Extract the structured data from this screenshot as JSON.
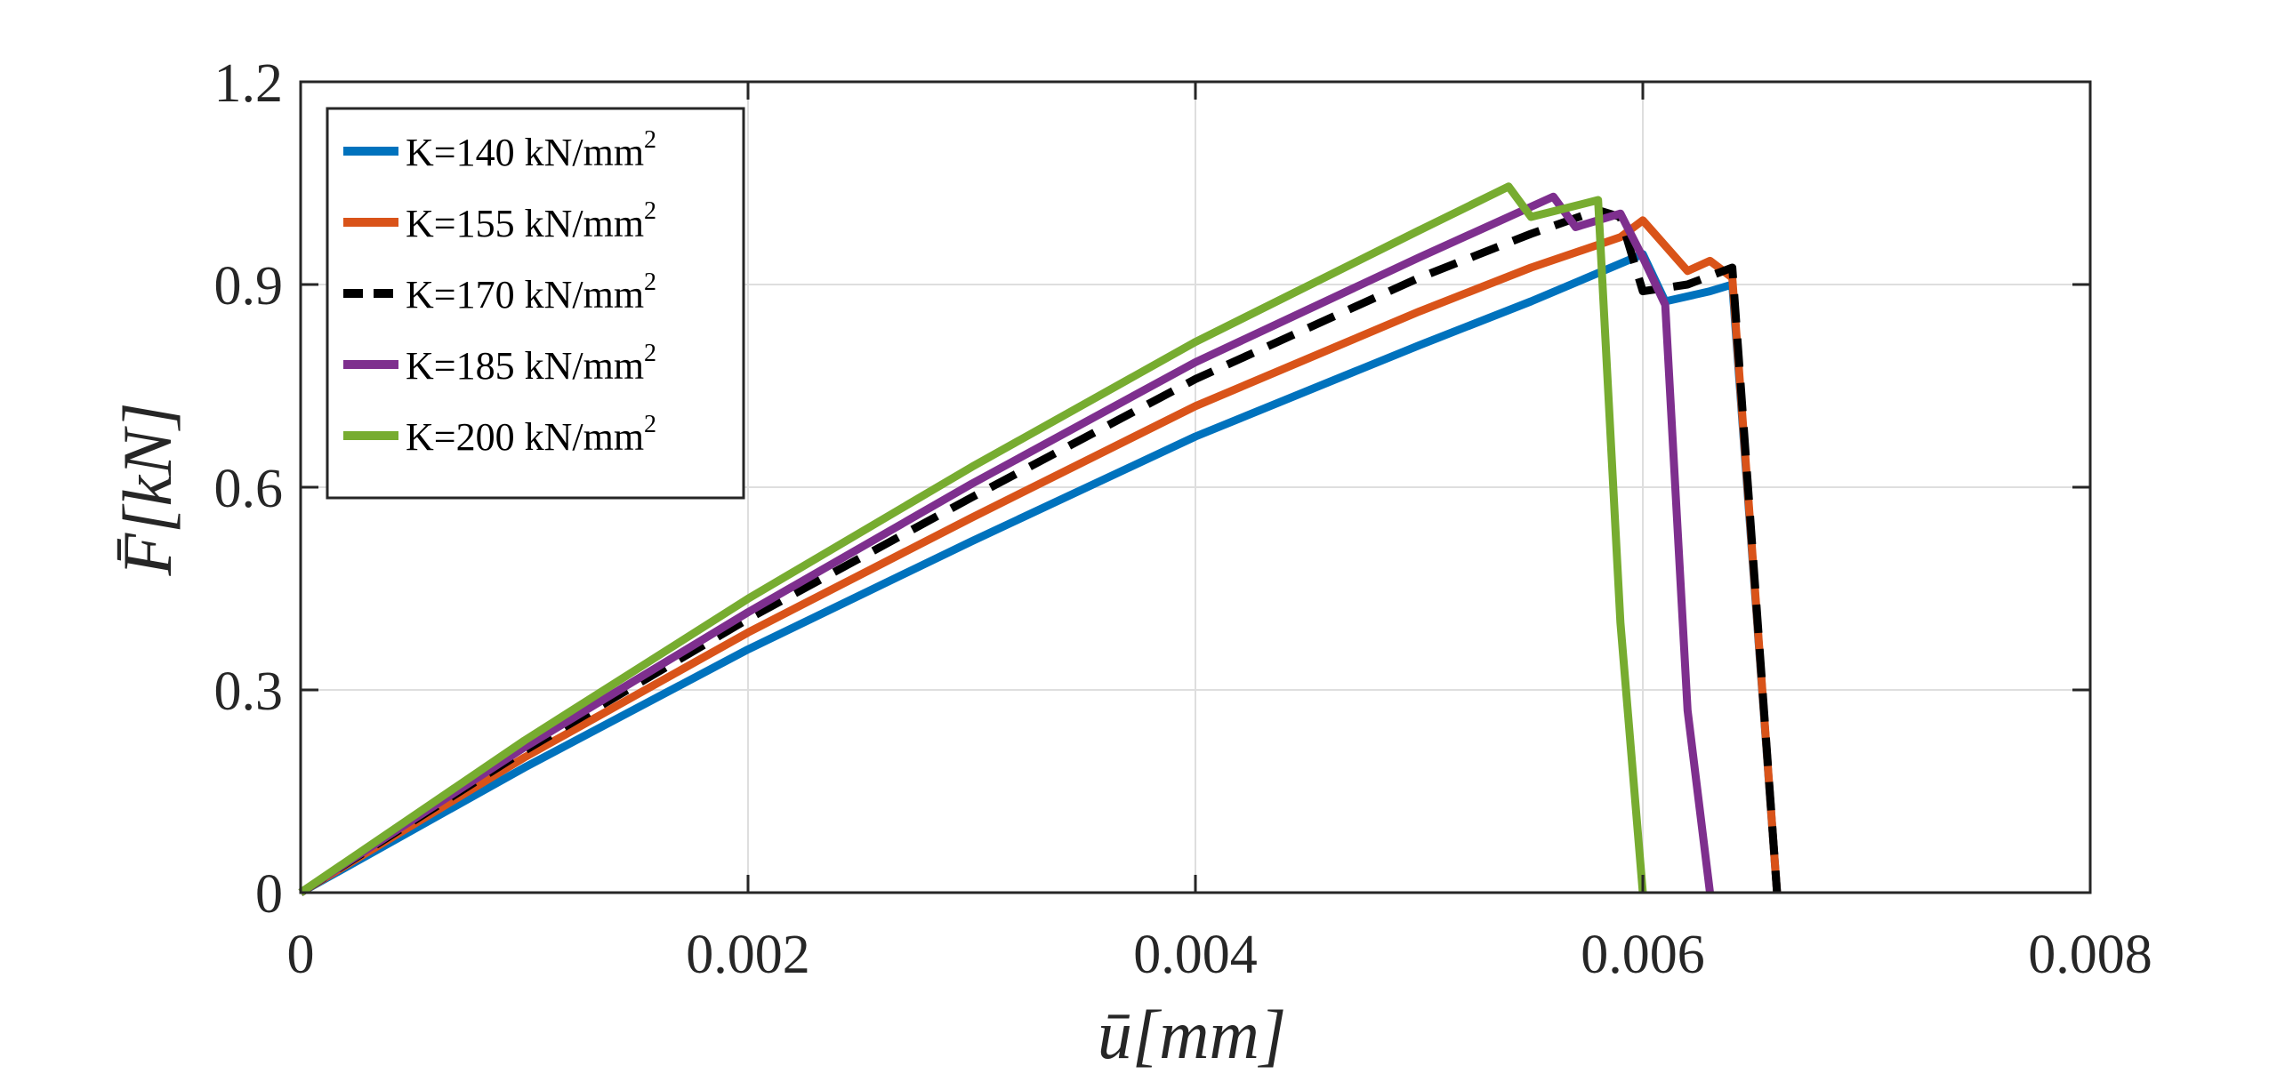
{
  "chart_data": {
    "type": "line",
    "xlabel": "ū[mm]",
    "ylabel": "F̄[kN]",
    "xlim": [
      0,
      0.008
    ],
    "ylim": [
      0,
      1.2
    ],
    "xticks": [
      0,
      0.002,
      0.004,
      0.006,
      0.008
    ],
    "xtick_labels": [
      "0",
      "0.002",
      "0.004",
      "0.006",
      "0.008"
    ],
    "yticks": [
      0,
      0.3,
      0.6,
      0.9,
      1.2
    ],
    "ytick_labels": [
      "0",
      "0.3",
      "0.6",
      "0.9",
      "1.2"
    ],
    "grid": true,
    "legend_position": "top-left",
    "series": [
      {
        "name": "K=140 kN/mm",
        "superscript": "2",
        "color": "#0072BD",
        "dash": "solid",
        "x": [
          0,
          0.001,
          0.002,
          0.003,
          0.004,
          0.005,
          0.0055,
          0.006,
          0.0061,
          0.0063,
          0.0064,
          0.0066
        ],
        "y": [
          0,
          0.185,
          0.36,
          0.52,
          0.675,
          0.81,
          0.875,
          0.945,
          0.875,
          0.89,
          0.9,
          0
        ]
      },
      {
        "name": "K=155 kN/mm",
        "superscript": "2",
        "color": "#D95319",
        "dash": "solid",
        "x": [
          0,
          0.001,
          0.002,
          0.003,
          0.004,
          0.005,
          0.0055,
          0.0059,
          0.006,
          0.0062,
          0.0063,
          0.0064,
          0.0066
        ],
        "y": [
          0,
          0.2,
          0.385,
          0.555,
          0.72,
          0.86,
          0.925,
          0.97,
          0.995,
          0.92,
          0.935,
          0.91,
          0
        ]
      },
      {
        "name": "K=170 kN/mm",
        "superscript": "2",
        "color": "#000000",
        "dash": "dashed",
        "x": [
          0,
          0.001,
          0.002,
          0.003,
          0.004,
          0.005,
          0.0055,
          0.0058,
          0.0059,
          0.006,
          0.0062,
          0.0064,
          0.0066
        ],
        "y": [
          0,
          0.21,
          0.405,
          0.585,
          0.76,
          0.91,
          0.975,
          1.01,
          1.0,
          0.89,
          0.9,
          0.925,
          0
        ]
      },
      {
        "name": "K=185 kN/mm",
        "superscript": "2",
        "color": "#7E2F8E",
        "dash": "solid",
        "x": [
          0,
          0.001,
          0.002,
          0.003,
          0.004,
          0.005,
          0.0056,
          0.0057,
          0.0059,
          0.006,
          0.0061,
          0.0062,
          0.0063
        ],
        "y": [
          0,
          0.215,
          0.415,
          0.605,
          0.785,
          0.94,
          1.03,
          0.985,
          1.005,
          0.94,
          0.87,
          0.27,
          0
        ]
      },
      {
        "name": "K=200 kN/mm",
        "superscript": "2",
        "color": "#77AC30",
        "dash": "solid",
        "x": [
          0,
          0.001,
          0.002,
          0.003,
          0.004,
          0.005,
          0.0054,
          0.0055,
          0.0058,
          0.0059,
          0.006
        ],
        "y": [
          0,
          0.225,
          0.435,
          0.63,
          0.815,
          0.98,
          1.045,
          1.0,
          1.025,
          0.4,
          0
        ]
      }
    ]
  }
}
